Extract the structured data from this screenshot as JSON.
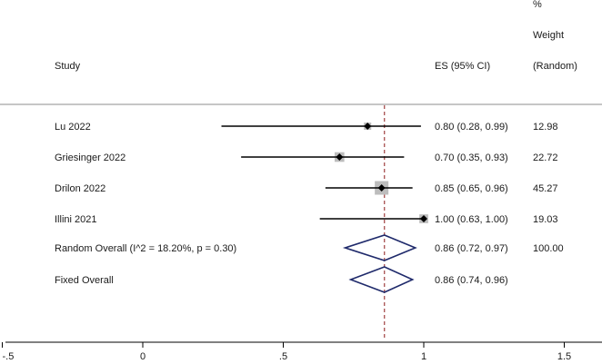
{
  "header": {
    "study": "Study",
    "es": "ES (95% CI)",
    "weight_line1": "%",
    "weight_line2": "Weight",
    "weight_line3": "(Random)"
  },
  "chart_data": {
    "type": "forest",
    "title": "",
    "xlabel": "",
    "ylabel": "",
    "xlim": [
      -0.5,
      1.6
    ],
    "x_ticks": [
      -0.5,
      0,
      0.5,
      1,
      1.5
    ],
    "x_tick_labels": [
      "-.5",
      "0",
      ".5",
      "1",
      "1.5"
    ],
    "reference_line": 0.86,
    "studies": [
      {
        "name": "Lu 2022",
        "es": 0.8,
        "lo": 0.28,
        "hi": 0.99,
        "es_text": "0.80 (0.28, 0.99)",
        "weight": 12.98,
        "weight_text": "12.98"
      },
      {
        "name": "Griesinger 2022",
        "es": 0.7,
        "lo": 0.35,
        "hi": 0.93,
        "es_text": "0.70 (0.35, 0.93)",
        "weight": 22.72,
        "weight_text": "22.72"
      },
      {
        "name": "Drilon 2022",
        "es": 0.85,
        "lo": 0.65,
        "hi": 0.96,
        "es_text": "0.85 (0.65, 0.96)",
        "weight": 45.27,
        "weight_text": "45.27"
      },
      {
        "name": "Illini 2021",
        "es": 1.0,
        "lo": 0.63,
        "hi": 1.0,
        "es_text": "1.00 (0.63, 1.00)",
        "weight": 19.03,
        "weight_text": "19.03"
      }
    ],
    "pooled": [
      {
        "name": "Random Overall  (I^2 = 18.20%, p = 0.30)",
        "es": 0.86,
        "lo": 0.72,
        "hi": 0.97,
        "es_text": "0.86 (0.72, 0.97)",
        "weight_text": "100.00"
      },
      {
        "name": "Fixed Overall",
        "es": 0.86,
        "lo": 0.74,
        "hi": 0.96,
        "es_text": "0.86 (0.74, 0.96)",
        "weight_text": ""
      }
    ],
    "colors": {
      "ci_line": "#000000",
      "marker": "#000000",
      "weight_box": "#bdbdbd",
      "diamond": "#1f2a6b",
      "reference_line": "#a04040",
      "separator": "#8c8c8c"
    }
  }
}
